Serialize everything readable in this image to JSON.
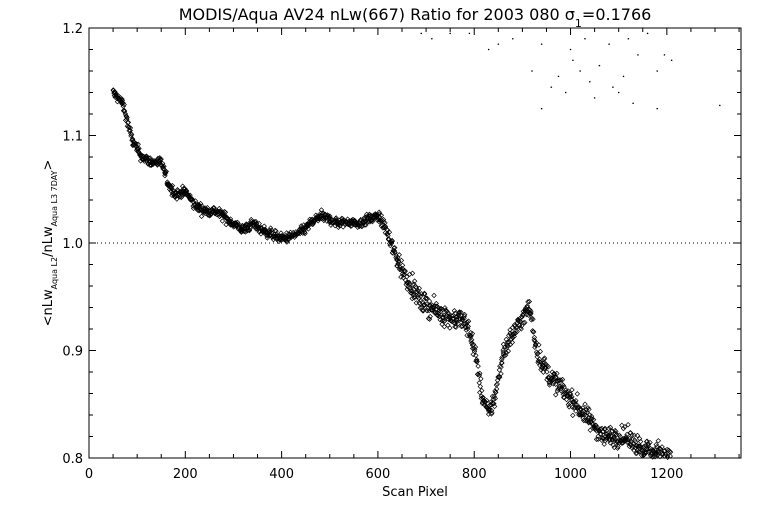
{
  "chart_data": {
    "type": "scatter",
    "title_main": "MODIS/Aqua AV24 nLw(667) Ratio for 2003 080 ",
    "title_sigma": "σ",
    "title_sigma_sub": "1",
    "title_sigma_value": "=0.1766",
    "xlabel": "Scan Pixel",
    "ylabel_parts": {
      "open": "<nLw",
      "sub1": "Aqua L2",
      "slash": "/nLw",
      "sub2": "Aqua L3 7DAY",
      "close": ">"
    },
    "xlim": [
      0,
      1354
    ],
    "ylim": [
      0.8,
      1.2
    ],
    "xticks": [
      0,
      200,
      400,
      600,
      800,
      1000,
      1200
    ],
    "xtick_labels": [
      "0",
      "200",
      "400",
      "600",
      "800",
      "1000",
      "1200"
    ],
    "yticks": [
      0.8,
      0.9,
      1.0,
      1.1,
      1.2
    ],
    "ytick_labels": [
      "0.8",
      "0.9",
      "1.0",
      "1.1",
      "1.2"
    ],
    "reference_line": 1.0,
    "grid": false,
    "trend": [
      [
        50,
        1.14
      ],
      [
        70,
        1.13
      ],
      [
        90,
        1.095
      ],
      [
        110,
        1.08
      ],
      [
        130,
        1.075
      ],
      [
        150,
        1.075
      ],
      [
        165,
        1.055
      ],
      [
        180,
        1.045
      ],
      [
        200,
        1.048
      ],
      [
        220,
        1.035
      ],
      [
        240,
        1.03
      ],
      [
        260,
        1.03
      ],
      [
        280,
        1.025
      ],
      [
        300,
        1.018
      ],
      [
        320,
        1.012
      ],
      [
        340,
        1.018
      ],
      [
        360,
        1.012
      ],
      [
        380,
        1.008
      ],
      [
        400,
        1.004
      ],
      [
        420,
        1.006
      ],
      [
        440,
        1.01
      ],
      [
        460,
        1.018
      ],
      [
        480,
        1.025
      ],
      [
        500,
        1.022
      ],
      [
        520,
        1.018
      ],
      [
        540,
        1.02
      ],
      [
        560,
        1.018
      ],
      [
        580,
        1.022
      ],
      [
        600,
        1.025
      ],
      [
        615,
        1.015
      ],
      [
        630,
        0.995
      ],
      [
        650,
        0.975
      ],
      [
        670,
        0.96
      ],
      [
        690,
        0.945
      ],
      [
        710,
        0.94
      ],
      [
        730,
        0.935
      ],
      [
        750,
        0.93
      ],
      [
        770,
        0.93
      ],
      [
        790,
        0.92
      ],
      [
        805,
        0.89
      ],
      [
        815,
        0.86
      ],
      [
        830,
        0.84
      ],
      [
        845,
        0.86
      ],
      [
        860,
        0.9
      ],
      [
        880,
        0.915
      ],
      [
        900,
        0.93
      ],
      [
        915,
        0.94
      ],
      [
        930,
        0.9
      ],
      [
        950,
        0.88
      ],
      [
        970,
        0.87
      ],
      [
        990,
        0.86
      ],
      [
        1010,
        0.85
      ],
      [
        1030,
        0.84
      ],
      [
        1050,
        0.83
      ],
      [
        1070,
        0.82
      ],
      [
        1090,
        0.82
      ],
      [
        1110,
        0.82
      ],
      [
        1130,
        0.815
      ],
      [
        1150,
        0.81
      ],
      [
        1170,
        0.805
      ],
      [
        1190,
        0.805
      ],
      [
        1210,
        0.8
      ]
    ],
    "outliers": [
      [
        690,
        1.195
      ],
      [
        712,
        1.19
      ],
      [
        750,
        1.195
      ],
      [
        790,
        1.195
      ],
      [
        830,
        1.18
      ],
      [
        850,
        1.185
      ],
      [
        880,
        1.19
      ],
      [
        940,
        1.185
      ],
      [
        1000,
        1.18
      ],
      [
        1030,
        1.19
      ],
      [
        1080,
        1.185
      ],
      [
        1120,
        1.19
      ],
      [
        1160,
        1.195
      ],
      [
        1195,
        1.175
      ],
      [
        920,
        1.16
      ],
      [
        975,
        1.155
      ],
      [
        990,
        1.14
      ],
      [
        1020,
        1.16
      ],
      [
        1050,
        1.135
      ],
      [
        1100,
        1.14
      ],
      [
        1130,
        1.13
      ],
      [
        1180,
        1.16
      ],
      [
        1210,
        1.17
      ],
      [
        940,
        1.125
      ],
      [
        960,
        1.145
      ],
      [
        1040,
        1.15
      ],
      [
        1060,
        1.165
      ],
      [
        1110,
        1.155
      ],
      [
        1180,
        1.125
      ],
      [
        1310,
        1.128
      ],
      [
        1088,
        1.145
      ],
      [
        1005,
        1.17
      ],
      [
        1140,
        1.175
      ]
    ]
  }
}
